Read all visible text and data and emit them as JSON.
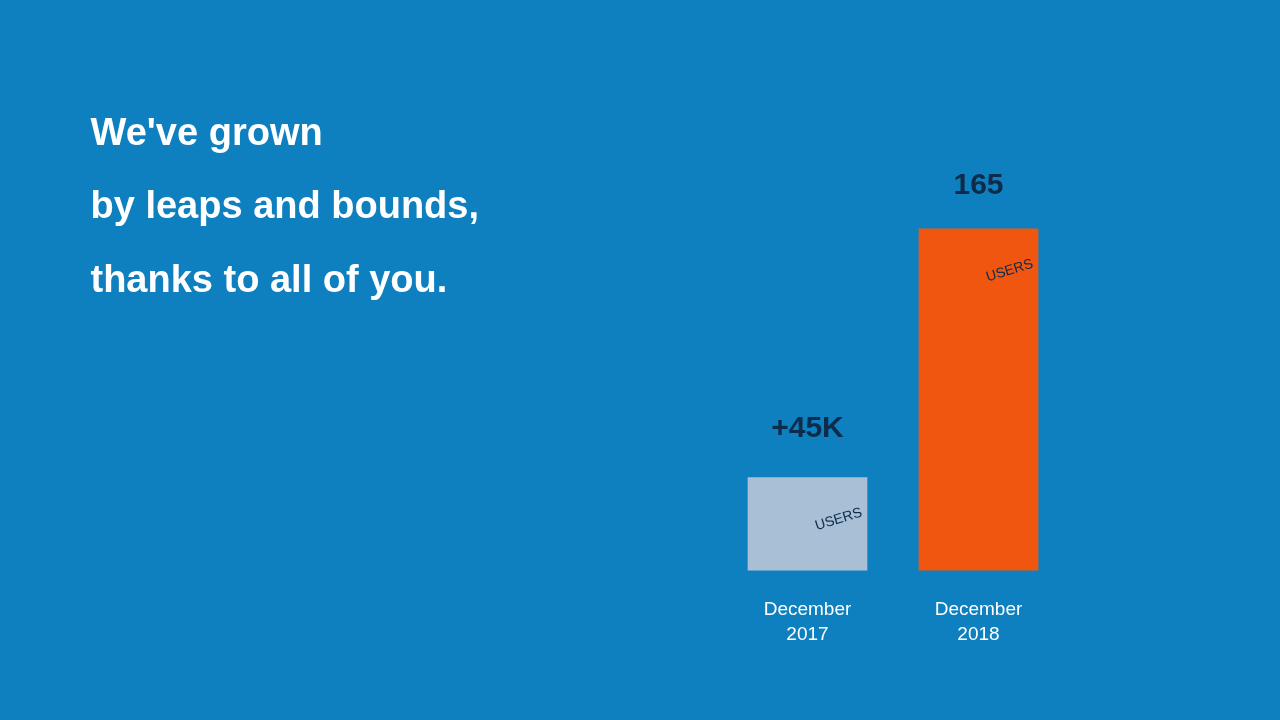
{
  "chart_data": {
    "type": "bar",
    "title": "We've grown\nby leaps and bounds,\nthanks to all of you.",
    "categories": [
      "December\n2017",
      "December\n2018"
    ],
    "values": [
      45,
      165
    ],
    "colors": [
      "#a9bfd6",
      "#f0560f"
    ],
    "value_labels": [
      "+45K",
      "165"
    ],
    "annotations": [
      "USERS",
      "USERS"
    ]
  }
}
